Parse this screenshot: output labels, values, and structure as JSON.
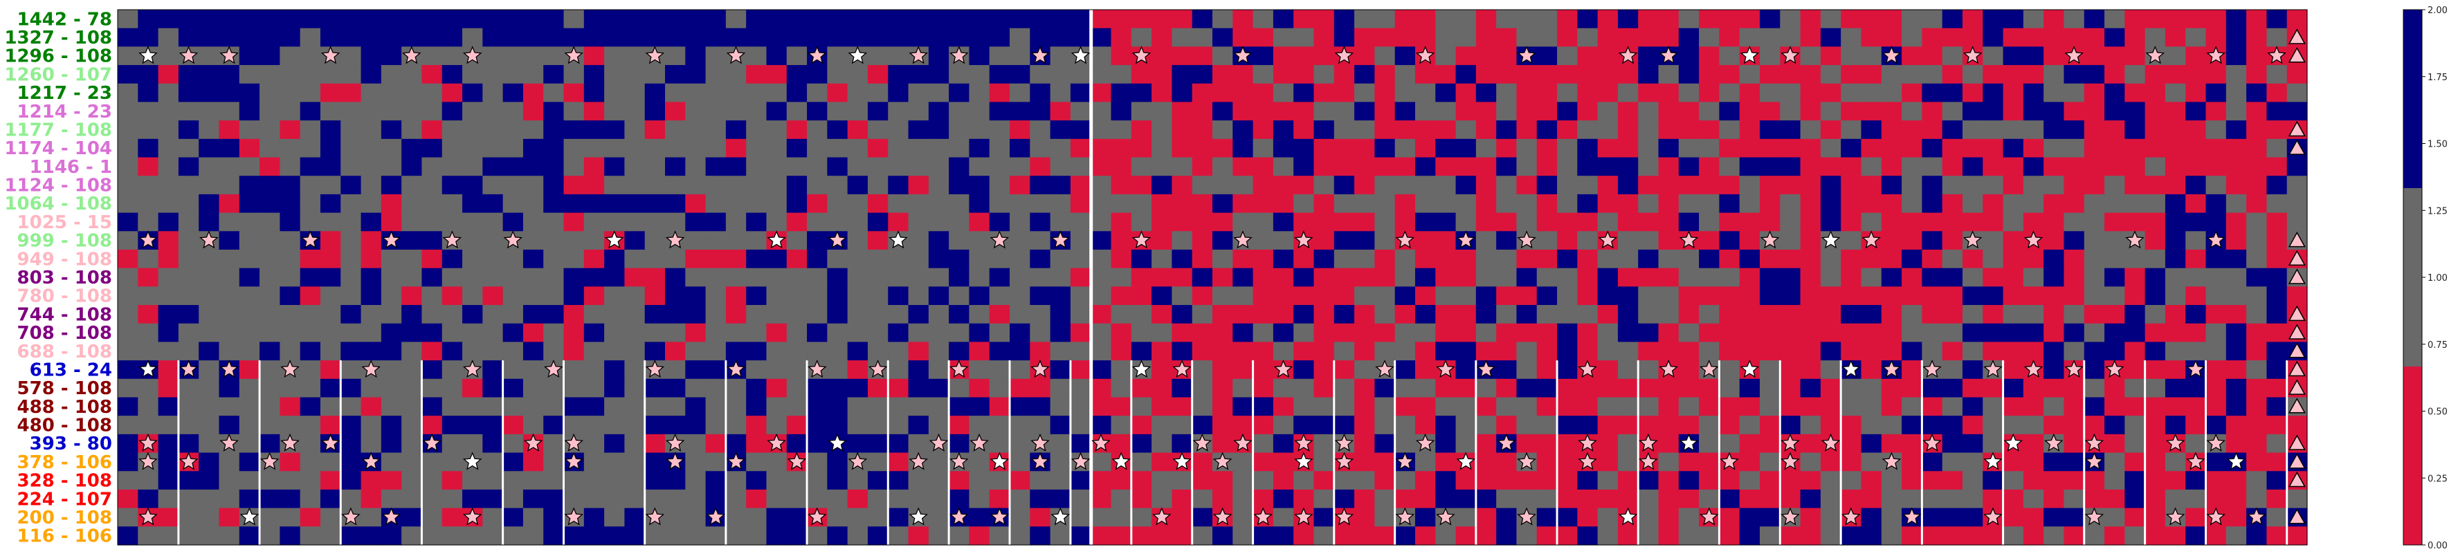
{
  "chart_data": {
    "type": "heatmap",
    "title": "",
    "xlabel": "",
    "ylabel": "",
    "rows": [
      {
        "label": "1442 - 78",
        "color": "#008000"
      },
      {
        "label": "1327 - 108",
        "color": "#008000"
      },
      {
        "label": "1296 - 108",
        "color": "#008000"
      },
      {
        "label": "1260 - 107",
        "color": "#90ee90"
      },
      {
        "label": "1217 - 23",
        "color": "#008000"
      },
      {
        "label": "1214 - 23",
        "color": "#da70d6"
      },
      {
        "label": "1177 - 108",
        "color": "#90ee90"
      },
      {
        "label": "1174 - 104",
        "color": "#da70d6"
      },
      {
        "label": "1146 - 1",
        "color": "#da70d6"
      },
      {
        "label": "1124 - 108",
        "color": "#da70d6"
      },
      {
        "label": "1064 - 108",
        "color": "#90ee90"
      },
      {
        "label": "1025 - 15",
        "color": "#ffb6c1"
      },
      {
        "label": "999 - 108",
        "color": "#90ee90"
      },
      {
        "label": "949 - 108",
        "color": "#ffb6c1"
      },
      {
        "label": "803 - 108",
        "color": "#800080"
      },
      {
        "label": "780 - 108",
        "color": "#ffb6c1"
      },
      {
        "label": "744 - 108",
        "color": "#800080"
      },
      {
        "label": "708 - 108",
        "color": "#800080"
      },
      {
        "label": "688 - 108",
        "color": "#ffb6c1"
      },
      {
        "label": "613 - 24",
        "color": "#0000cd"
      },
      {
        "label": "578 - 108",
        "color": "#8b0000"
      },
      {
        "label": "488 - 108",
        "color": "#8b0000"
      },
      {
        "label": "480 - 108",
        "color": "#8b0000"
      },
      {
        "label": "393 - 80",
        "color": "#0000cd"
      },
      {
        "label": "378 - 106",
        "color": "#ffa500"
      },
      {
        "label": "328 - 108",
        "color": "#ff0000"
      },
      {
        "label": "224 - 107",
        "color": "#ff0000"
      },
      {
        "label": "200 - 108",
        "color": "#ffa500"
      },
      {
        "label": "116 - 106",
        "color": "#ffa500"
      }
    ],
    "n_columns": 108,
    "value_levels": [
      0,
      1,
      2
    ],
    "level_colors": [
      "#dc143c",
      "#696969",
      "#000080"
    ],
    "colorbar": {
      "range": [
        0.0,
        2.0
      ],
      "ticks": [
        "0.00",
        "0.25",
        "0.50",
        "0.75",
        "1.00",
        "1.25",
        "1.50",
        "1.75",
        "2.00"
      ]
    },
    "marker_colors": {
      "pink": "#ffc0cb",
      "white": "#ffffff"
    },
    "pattern": {
      "left_region_columns": 48,
      "left_region_values": [
        0,
        1,
        1,
        1,
        2,
        2,
        1,
        2,
        1,
        1
      ],
      "right_region_values": [
        0,
        0,
        0,
        1,
        1,
        2,
        1,
        0,
        0,
        2
      ],
      "first_rows_mostly_navy": 2,
      "star_rows": [
        "1296 - 108",
        "999 - 108",
        "613 - 24",
        "393 - 80",
        "378 - 106",
        "200 - 108"
      ],
      "triangle_column_right": 107
    },
    "separators": {
      "full_height_columns": [
        48
      ],
      "mid_height_start_row": "613 - 24"
    }
  }
}
